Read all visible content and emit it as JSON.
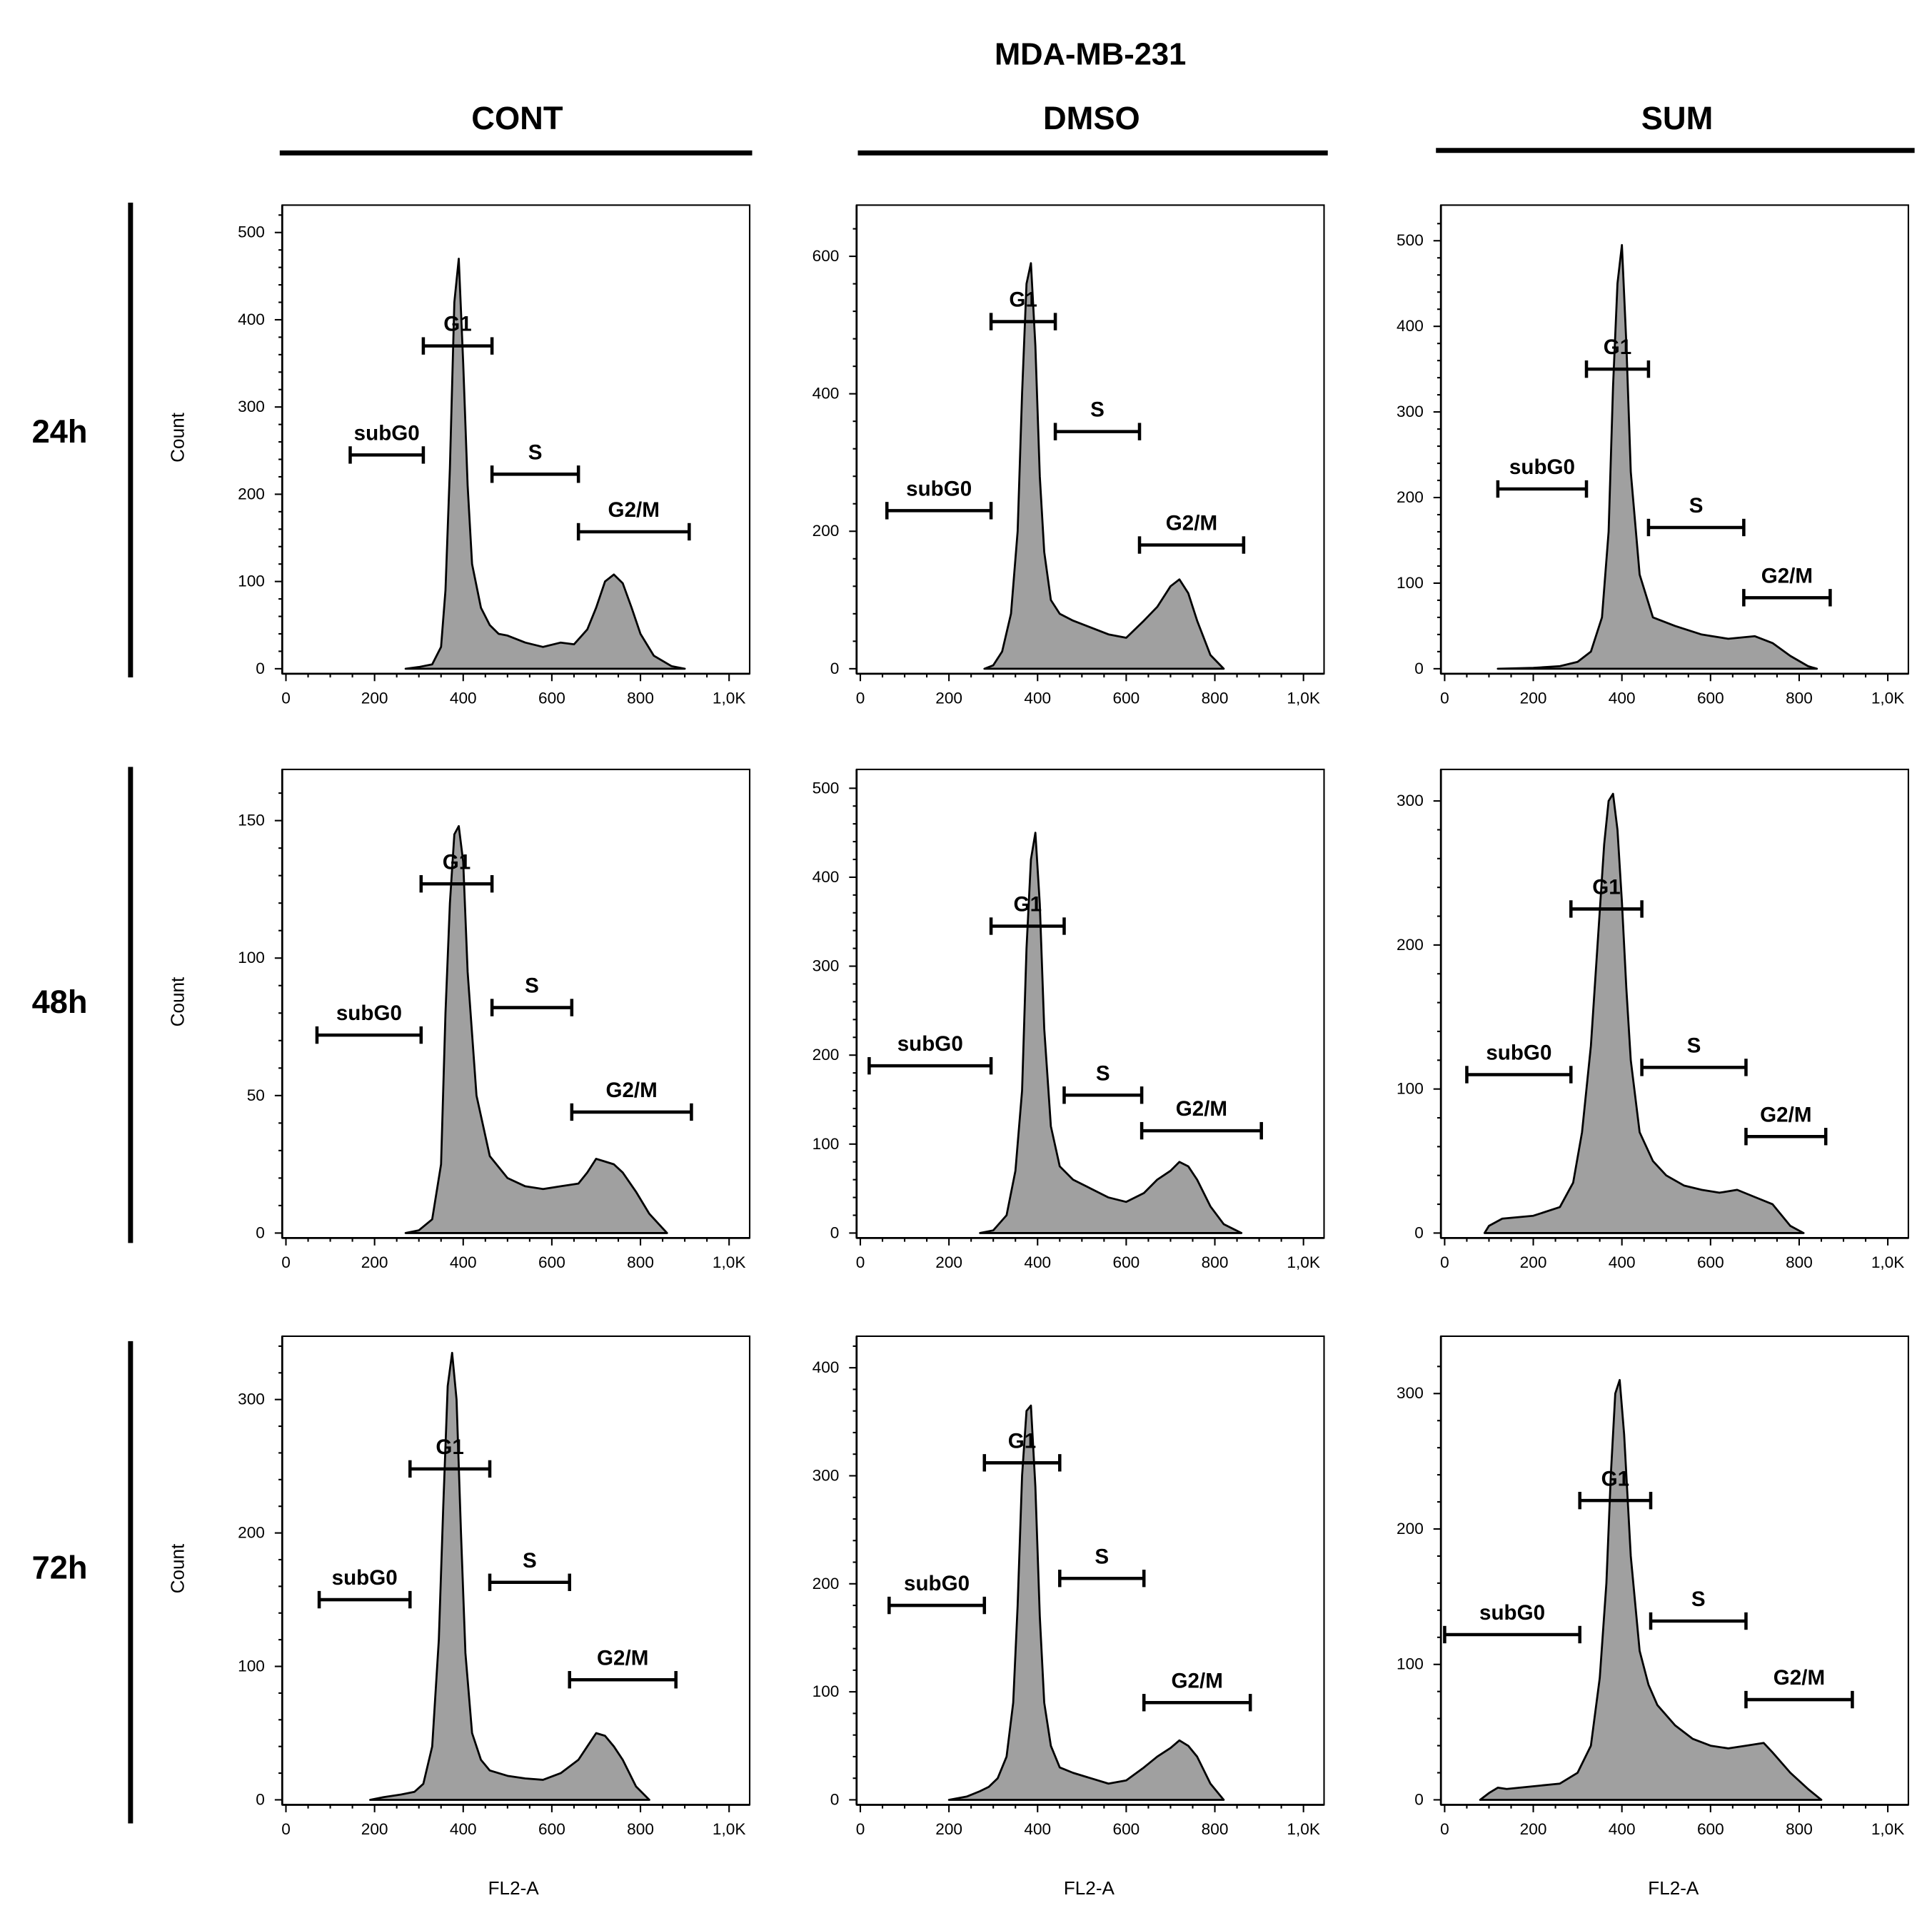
{
  "figure": {
    "title": "MDA-MB-231",
    "conditions": [
      "CONT",
      "DMSO",
      "SUM"
    ],
    "timepoints": [
      "24h",
      "48h",
      "72h"
    ],
    "y_axis_label": "Count",
    "x_axis_label": "FL2-A",
    "x_ticks": [
      "0",
      "200",
      "400",
      "600",
      "800",
      "1,0K"
    ]
  },
  "colors": {
    "fill": "#a0a0a0",
    "stroke": "#000000"
  },
  "chart_data": [
    {
      "type": "area",
      "row": "24h",
      "column": "CONT",
      "ylabel": "Count",
      "xlabel": "FL2-A",
      "xlim": [
        0,
        1024
      ],
      "ylim": [
        0,
        520
      ],
      "yticks": [
        0,
        100,
        200,
        300,
        400,
        500
      ],
      "x": [
        270,
        300,
        330,
        350,
        360,
        370,
        380,
        390,
        400,
        410,
        420,
        440,
        460,
        480,
        500,
        540,
        580,
        620,
        650,
        680,
        700,
        720,
        740,
        760,
        780,
        800,
        830,
        870,
        900
      ],
      "y": [
        0,
        2,
        5,
        25,
        90,
        230,
        420,
        470,
        350,
        210,
        120,
        70,
        50,
        40,
        38,
        30,
        25,
        30,
        28,
        45,
        70,
        100,
        108,
        98,
        70,
        40,
        15,
        3,
        0
      ],
      "gates": [
        {
          "label": "subG0",
          "from": 145,
          "to": 310,
          "level": 245
        },
        {
          "label": "G1",
          "from": 310,
          "to": 465,
          "level": 370
        },
        {
          "label": "S",
          "from": 465,
          "to": 660,
          "level": 223
        },
        {
          "label": "G2/M",
          "from": 660,
          "to": 910,
          "level": 157
        }
      ]
    },
    {
      "type": "area",
      "row": "24h",
      "column": "DMSO",
      "ylabel": "Count",
      "xlabel": "FL2-A",
      "xlim": [
        0,
        1024
      ],
      "ylim": [
        0,
        660
      ],
      "yticks": [
        0,
        200,
        400,
        600
      ],
      "x": [
        280,
        300,
        320,
        340,
        355,
        365,
        375,
        385,
        395,
        405,
        415,
        430,
        450,
        480,
        520,
        560,
        600,
        640,
        670,
        700,
        720,
        740,
        760,
        790,
        820
      ],
      "y": [
        0,
        5,
        25,
        80,
        200,
        400,
        560,
        590,
        470,
        280,
        170,
        100,
        80,
        70,
        60,
        50,
        45,
        70,
        90,
        120,
        130,
        110,
        70,
        20,
        0
      ],
      "gates": [
        {
          "label": "subG0",
          "from": 60,
          "to": 295,
          "level": 230
        },
        {
          "label": "G1",
          "from": 295,
          "to": 440,
          "level": 505
        },
        {
          "label": "S",
          "from": 440,
          "to": 630,
          "level": 345
        },
        {
          "label": "G2/M",
          "from": 630,
          "to": 865,
          "level": 180
        }
      ]
    },
    {
      "type": "area",
      "row": "24h",
      "column": "SUM",
      "ylabel": "Count",
      "xlabel": "FL2-A",
      "xlim": [
        0,
        1024
      ],
      "ylim": [
        0,
        530
      ],
      "yticks": [
        0,
        100,
        200,
        300,
        400,
        500
      ],
      "x": [
        120,
        200,
        260,
        300,
        330,
        355,
        370,
        380,
        390,
        400,
        410,
        420,
        440,
        470,
        520,
        580,
        640,
        700,
        740,
        780,
        820,
        840
      ],
      "y": [
        0,
        1,
        3,
        8,
        20,
        60,
        160,
        330,
        450,
        495,
        380,
        230,
        110,
        60,
        50,
        40,
        35,
        38,
        30,
        15,
        3,
        0
      ],
      "gates": [
        {
          "label": "subG0",
          "from": 120,
          "to": 320,
          "level": 210
        },
        {
          "label": "G1",
          "from": 320,
          "to": 460,
          "level": 350
        },
        {
          "label": "S",
          "from": 460,
          "to": 675,
          "level": 165
        },
        {
          "label": "G2/M",
          "from": 675,
          "to": 870,
          "level": 83
        }
      ]
    },
    {
      "type": "area",
      "row": "48h",
      "column": "CONT",
      "ylabel": "Count",
      "xlabel": "FL2-A",
      "xlim": [
        0,
        1024
      ],
      "ylim": [
        0,
        165
      ],
      "yticks": [
        0,
        50,
        100,
        150
      ],
      "x": [
        270,
        300,
        330,
        350,
        360,
        370,
        380,
        390,
        400,
        410,
        430,
        460,
        500,
        540,
        580,
        620,
        660,
        680,
        700,
        720,
        740,
        760,
        790,
        820,
        860
      ],
      "y": [
        0,
        1,
        5,
        25,
        80,
        120,
        145,
        148,
        135,
        95,
        50,
        28,
        20,
        17,
        16,
        17,
        18,
        22,
        27,
        26,
        25,
        22,
        15,
        7,
        0
      ],
      "gates": [
        {
          "label": "subG0",
          "from": 70,
          "to": 305,
          "level": 72
        },
        {
          "label": "G1",
          "from": 305,
          "to": 465,
          "level": 127
        },
        {
          "label": "S",
          "from": 465,
          "to": 645,
          "level": 82
        },
        {
          "label": "G2/M",
          "from": 645,
          "to": 915,
          "level": 44
        }
      ]
    },
    {
      "type": "area",
      "row": "48h",
      "column": "DMSO",
      "ylabel": "Count",
      "xlabel": "FL2-A",
      "xlim": [
        0,
        1024
      ],
      "ylim": [
        0,
        510
      ],
      "yticks": [
        0,
        100,
        200,
        300,
        400,
        500
      ],
      "x": [
        270,
        300,
        330,
        350,
        365,
        375,
        385,
        395,
        405,
        415,
        430,
        450,
        480,
        520,
        560,
        600,
        640,
        670,
        700,
        720,
        740,
        760,
        790,
        820,
        860
      ],
      "y": [
        0,
        3,
        20,
        70,
        160,
        320,
        420,
        450,
        370,
        230,
        120,
        75,
        60,
        50,
        40,
        35,
        45,
        60,
        70,
        80,
        75,
        60,
        30,
        10,
        0
      ],
      "gates": [
        {
          "label": "subG0",
          "from": 20,
          "to": 295,
          "level": 188
        },
        {
          "label": "G1",
          "from": 295,
          "to": 460,
          "level": 345
        },
        {
          "label": "S",
          "from": 460,
          "to": 635,
          "level": 155
        },
        {
          "label": "G2/M",
          "from": 635,
          "to": 905,
          "level": 115
        }
      ]
    },
    {
      "type": "area",
      "row": "48h",
      "column": "SUM",
      "ylabel": "Count",
      "xlabel": "FL2-A",
      "xlim": [
        0,
        1024
      ],
      "ylim": [
        0,
        315
      ],
      "yticks": [
        0,
        100,
        200,
        300
      ],
      "x": [
        90,
        100,
        130,
        200,
        260,
        290,
        310,
        330,
        345,
        360,
        370,
        380,
        390,
        400,
        410,
        420,
        440,
        470,
        500,
        540,
        580,
        620,
        660,
        700,
        740,
        780,
        810
      ],
      "y": [
        0,
        5,
        10,
        12,
        18,
        35,
        70,
        130,
        200,
        270,
        300,
        305,
        280,
        230,
        170,
        120,
        70,
        50,
        40,
        33,
        30,
        28,
        30,
        25,
        20,
        5,
        0
      ],
      "gates": [
        {
          "label": "subG0",
          "from": 50,
          "to": 285,
          "level": 110
        },
        {
          "label": "G1",
          "from": 285,
          "to": 445,
          "level": 225
        },
        {
          "label": "S",
          "from": 445,
          "to": 680,
          "level": 115
        },
        {
          "label": "G2/M",
          "from": 680,
          "to": 860,
          "level": 67
        }
      ]
    },
    {
      "type": "area",
      "row": "72h",
      "column": "CONT",
      "ylabel": "Count",
      "xlabel": "FL2-A",
      "xlim": [
        0,
        1024
      ],
      "ylim": [
        0,
        340
      ],
      "yticks": [
        0,
        100,
        200,
        300
      ],
      "x": [
        190,
        220,
        260,
        290,
        310,
        330,
        345,
        355,
        365,
        375,
        385,
        395,
        405,
        420,
        440,
        460,
        480,
        500,
        540,
        580,
        620,
        660,
        680,
        700,
        720,
        740,
        760,
        790,
        820
      ],
      "y": [
        0,
        2,
        4,
        6,
        12,
        40,
        120,
        220,
        310,
        335,
        300,
        200,
        110,
        50,
        30,
        22,
        20,
        18,
        16,
        15,
        20,
        30,
        40,
        50,
        48,
        40,
        30,
        10,
        0
      ],
      "gates": [
        {
          "label": "subG0",
          "from": 75,
          "to": 280,
          "level": 150
        },
        {
          "label": "G1",
          "from": 280,
          "to": 460,
          "level": 248
        },
        {
          "label": "S",
          "from": 460,
          "to": 640,
          "level": 163
        },
        {
          "label": "G2/M",
          "from": 640,
          "to": 880,
          "level": 90
        }
      ]
    },
    {
      "type": "area",
      "row": "72h",
      "column": "DMSO",
      "ylabel": "Count",
      "xlabel": "FL2-A",
      "xlim": [
        0,
        1024
      ],
      "ylim": [
        0,
        420
      ],
      "yticks": [
        0,
        100,
        200,
        300,
        400
      ],
      "x": [
        200,
        240,
        270,
        290,
        310,
        330,
        345,
        355,
        365,
        375,
        385,
        395,
        405,
        415,
        430,
        450,
        480,
        520,
        560,
        600,
        640,
        670,
        700,
        720,
        740,
        760,
        790,
        820
      ],
      "y": [
        0,
        3,
        8,
        12,
        20,
        40,
        90,
        180,
        300,
        360,
        365,
        290,
        170,
        90,
        50,
        30,
        25,
        20,
        15,
        18,
        30,
        40,
        48,
        55,
        50,
        40,
        15,
        0
      ],
      "gates": [
        {
          "label": "subG0",
          "from": 65,
          "to": 280,
          "level": 180
        },
        {
          "label": "G1",
          "from": 280,
          "to": 450,
          "level": 312
        },
        {
          "label": "S",
          "from": 450,
          "to": 640,
          "level": 205
        },
        {
          "label": "G2/M",
          "from": 640,
          "to": 880,
          "level": 90
        }
      ]
    },
    {
      "type": "area",
      "row": "72h",
      "column": "SUM",
      "ylabel": "Count",
      "xlabel": "FL2-A",
      "xlim": [
        0,
        1024
      ],
      "ylim": [
        0,
        335
      ],
      "yticks": [
        0,
        100,
        200,
        300
      ],
      "x": [
        80,
        100,
        120,
        140,
        200,
        260,
        300,
        330,
        350,
        365,
        375,
        385,
        395,
        405,
        420,
        440,
        460,
        480,
        520,
        560,
        600,
        640,
        680,
        720,
        740,
        780,
        820,
        850
      ],
      "y": [
        0,
        5,
        9,
        8,
        10,
        12,
        20,
        40,
        90,
        160,
        240,
        300,
        310,
        270,
        180,
        110,
        85,
        70,
        55,
        45,
        40,
        38,
        40,
        42,
        35,
        20,
        8,
        0
      ],
      "gates": [
        {
          "label": "subG0",
          "from": 0,
          "to": 305,
          "level": 122
        },
        {
          "label": "G1",
          "from": 305,
          "to": 465,
          "level": 221
        },
        {
          "label": "S",
          "from": 465,
          "to": 680,
          "level": 132
        },
        {
          "label": "G2/M",
          "from": 680,
          "to": 920,
          "level": 74
        }
      ]
    }
  ]
}
